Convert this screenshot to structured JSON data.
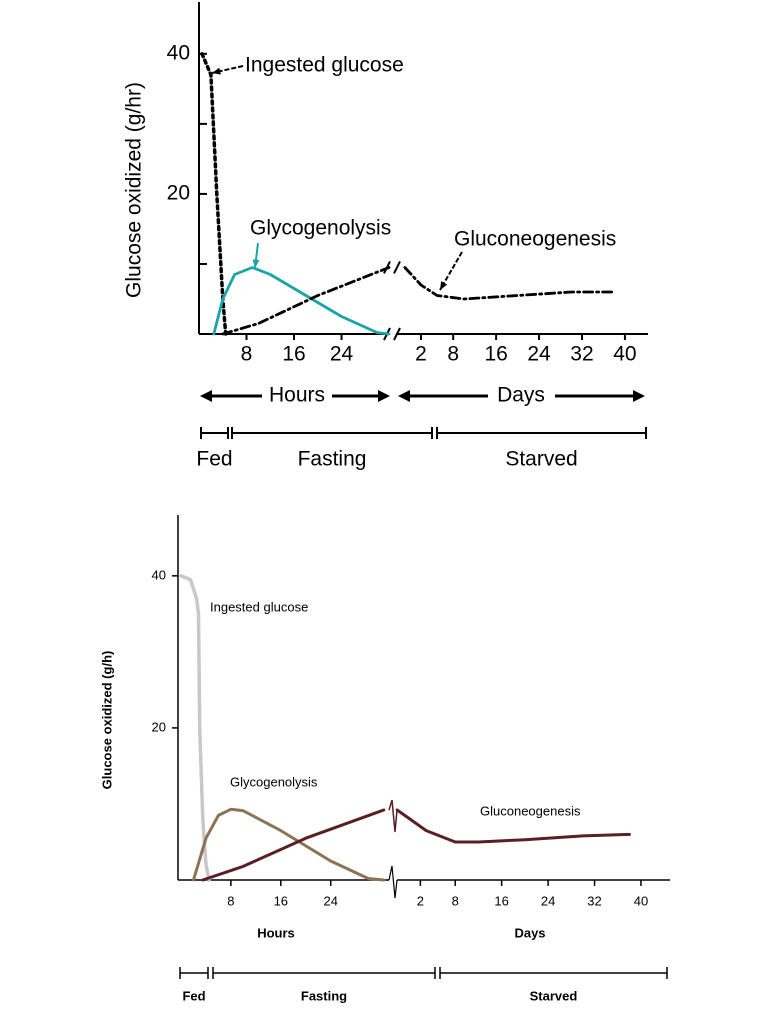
{
  "chart_data": [
    {
      "type": "line",
      "ylabel": "Glucose oxidized (g/hr)",
      "ylim": [
        0,
        47.4
      ],
      "yticks": [
        20,
        40
      ],
      "yminor": [
        10,
        30
      ],
      "hours": {
        "xlabel": "Hours",
        "xlim": [
          0,
          32.5
        ],
        "xticks": [
          8,
          16,
          24
        ]
      },
      "days": {
        "xlabel": "Days",
        "xlim": [
          -3.4,
          44.3
        ],
        "xticks": [
          2,
          8,
          16,
          24,
          32,
          40
        ]
      },
      "periods": [
        "Fed",
        "Fasting",
        "Starved"
      ],
      "series": [
        {
          "name": "Ingested glucose",
          "color": "#000000",
          "hours": {
            "x": [
              0.5,
              2,
              3,
              4,
              4.5
            ],
            "values": [
              40,
              37,
              20,
              5,
              0
            ]
          },
          "days": {
            "x": [],
            "values": []
          }
        },
        {
          "name": "Glycogenolysis",
          "color": "#1aa3a8",
          "hours": {
            "x": [
              2.5,
              4,
              6,
              9,
              12,
              18,
              24,
              30,
              32
            ],
            "values": [
              0,
              5,
              8.5,
              9.5,
              8.5,
              5.5,
              2.5,
              0.2,
              0
            ]
          },
          "days": {
            "x": [],
            "values": []
          }
        },
        {
          "name": "Gluconeogenesis",
          "color": "#000000",
          "hours": {
            "x": [
              4,
              10,
              20,
              32
            ],
            "values": [
              0,
              1.5,
              5.5,
              9.5
            ]
          },
          "days": {
            "x": [
              -1,
              2,
              5,
              10,
              20,
              30,
              38
            ],
            "values": [
              9.5,
              7,
              5.5,
              5,
              5.5,
              6,
              6
            ]
          }
        }
      ]
    },
    {
      "type": "line",
      "ylabel": "Glucose oxidized (g/h)",
      "ylim": [
        0,
        48
      ],
      "yticks": [
        20,
        40
      ],
      "hours": {
        "xlabel": "Hours",
        "xlim": [
          0,
          33.5
        ],
        "xticks": [
          8,
          16,
          24
        ]
      },
      "days": {
        "xlabel": "Days",
        "xlim": [
          -2.2,
          45
        ],
        "xticks": [
          2,
          8,
          16,
          24,
          32,
          40
        ]
      },
      "periods": [
        "Fed",
        "Fasting",
        "Starved"
      ],
      "series": [
        {
          "name": "Ingested glucose",
          "color": "#c8c8c8",
          "hours": {
            "x": [
              0,
              1.5,
              2.5,
              2.8,
              3,
              3.5,
              4,
              4.5
            ],
            "values": [
              40,
              39.5,
              37,
              35,
              20,
              8,
              2,
              0
            ]
          },
          "days": {
            "x": [],
            "values": []
          }
        },
        {
          "name": "Glycogenolysis",
          "color": "#8b7355",
          "hours": {
            "x": [
              2,
              4,
              6,
              8,
              10,
              16,
              24,
              30,
              32.5
            ],
            "values": [
              0,
              5.5,
              8.5,
              9.3,
              9.1,
              6.5,
              2.5,
              0.2,
              0
            ]
          },
          "days": {
            "x": [],
            "values": []
          }
        },
        {
          "name": "Gluconeogenesis",
          "color": "#5a1f24",
          "hours": {
            "x": [
              3.5,
              10,
              20,
              32.5
            ],
            "values": [
              0,
              1.8,
              5.5,
              9.2
            ]
          },
          "days": {
            "x": [
              -2,
              3,
              8,
              12,
              20,
              30,
              38
            ],
            "values": [
              9.2,
              6.5,
              5,
              5,
              5.3,
              5.8,
              6
            ]
          }
        }
      ]
    }
  ]
}
